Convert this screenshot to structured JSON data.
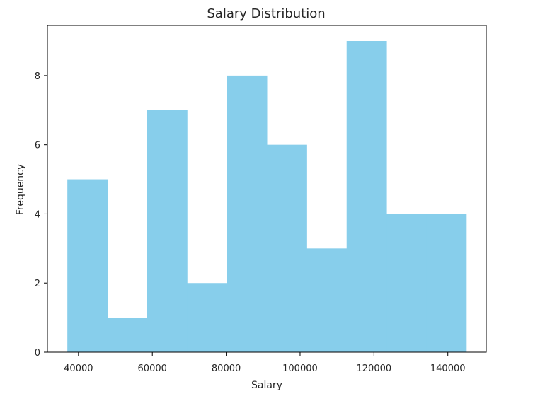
{
  "chart_data": {
    "type": "bar",
    "title": "Salary Distribution",
    "xlabel": "Salary",
    "ylabel": "Frequency",
    "bins": [
      {
        "x0": 37000,
        "x1": 47800,
        "count": 5
      },
      {
        "x0": 47800,
        "x1": 58600,
        "count": 1
      },
      {
        "x0": 58600,
        "x1": 69400,
        "count": 7
      },
      {
        "x0": 69400,
        "x1": 80200,
        "count": 2
      },
      {
        "x0": 80200,
        "x1": 91000,
        "count": 8
      },
      {
        "x0": 91000,
        "x1": 101800,
        "count": 6
      },
      {
        "x0": 101800,
        "x1": 112600,
        "count": 3
      },
      {
        "x0": 112600,
        "x1": 123400,
        "count": 9
      },
      {
        "x0": 123400,
        "x1": 134200,
        "count": 4
      },
      {
        "x0": 134200,
        "x1": 145000,
        "count": 4
      }
    ],
    "xlim": [
      31600,
      150400
    ],
    "ylim": [
      0,
      9.45
    ],
    "xticks": [
      40000,
      60000,
      80000,
      100000,
      120000,
      140000
    ],
    "yticks": [
      0,
      2,
      4,
      6,
      8
    ],
    "bar_color": "#87CEEB",
    "grid": false
  }
}
